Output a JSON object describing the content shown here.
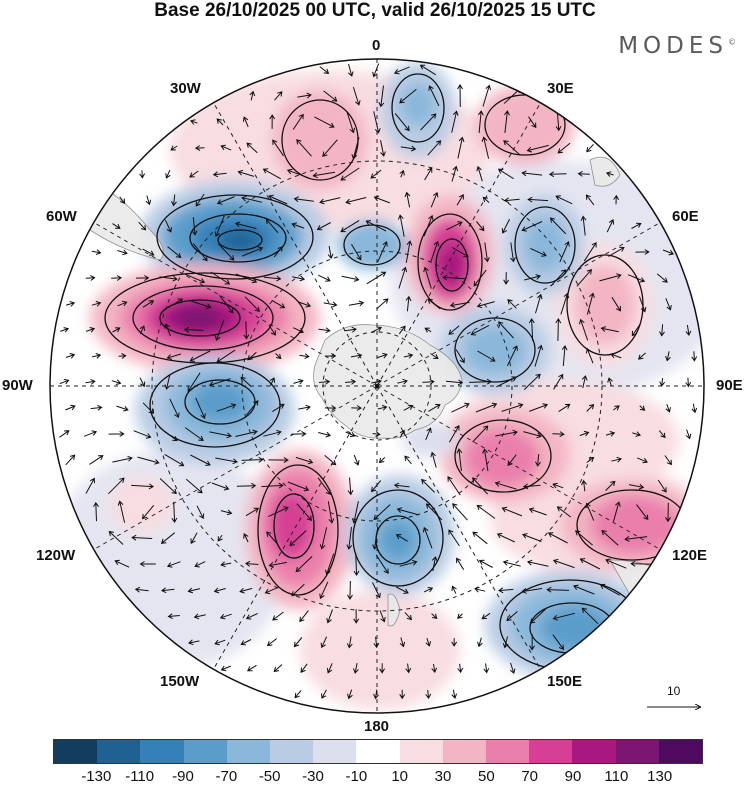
{
  "title": "Base 26/10/2025 00 UTC, valid 26/10/2025 15 UTC",
  "brand": {
    "name": "MODES",
    "mark": "©"
  },
  "longitude_labels": {
    "top": "0",
    "bottom": "180",
    "left": "90W",
    "right": "90E",
    "upper_left_1": "30W",
    "upper_left_2": "60W",
    "lower_left_1": "120W",
    "lower_left_2": "150W",
    "upper_right_1": "30E",
    "upper_right_2": "60E",
    "lower_right_1": "120E",
    "lower_right_2": "150E"
  },
  "reference_vector": {
    "value": "10"
  },
  "colorbar": {
    "ticks": [
      "-130",
      "-110",
      "-90",
      "-70",
      "-50",
      "-30",
      "-10",
      "10",
      "30",
      "50",
      "70",
      "90",
      "110",
      "130"
    ],
    "colors": [
      "#133d5e",
      "#1f6192",
      "#3480b8",
      "#5a9dcb",
      "#8ab7da",
      "#b9cce4",
      "#dcdfee",
      "#ffffff",
      "#f8dde1",
      "#f3b5c3",
      "#ea7fac",
      "#d54095",
      "#a8187e",
      "#7c1672",
      "#4e0a5e"
    ]
  },
  "anomaly_centers": [
    {
      "name": "60W-trough",
      "value": -95
    },
    {
      "name": "75W-ridge",
      "value": 135
    },
    {
      "name": "95W-trough",
      "value": -75
    },
    {
      "name": "115W-ridge",
      "value": 45
    },
    {
      "name": "140W-ridge",
      "value": 95
    },
    {
      "name": "165E-trough",
      "value": -70
    },
    {
      "name": "150E-trough",
      "value": -65
    },
    {
      "name": "120E-ridge",
      "value": 65
    },
    {
      "name": "100E-ridge",
      "value": 60
    },
    {
      "name": "75E-ridge",
      "value": 40
    },
    {
      "name": "55E-trough",
      "value": -55
    },
    {
      "name": "30E-ridge-inner",
      "value": 110
    },
    {
      "name": "40E-ridge",
      "value": 40
    },
    {
      "name": "15W-ridge",
      "value": 40
    },
    {
      "name": "5E-trough",
      "value": -40
    },
    {
      "name": "10E-trough-inner",
      "value": -45
    },
    {
      "name": "80E-trough-inner",
      "value": -50
    }
  ]
}
